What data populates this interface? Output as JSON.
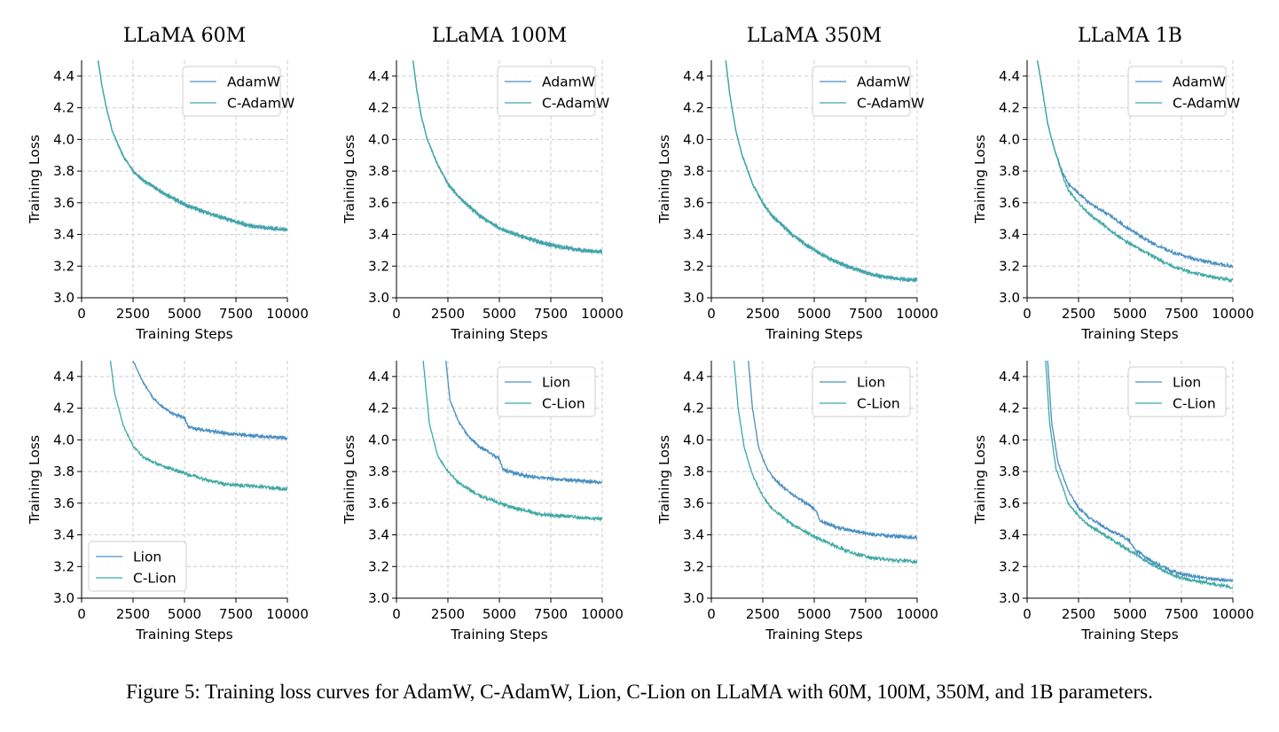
{
  "caption": "Figure 5: Training loss curves for AdamW, C-AdamW, Lion, C-Lion on LLaMA with 60M, 100M, 350M, and 1B parameters.",
  "colors": {
    "base": "#4a8fc0",
    "cautious": "#3fa9a3",
    "grid": "#cccccc"
  },
  "chart_data": [
    {
      "type": "line",
      "title": "LLaMA 60M",
      "xlabel": "Training Steps",
      "ylabel": "Training Loss",
      "xlim": [
        0,
        10000
      ],
      "ylim": [
        3.0,
        4.5
      ],
      "grid": true,
      "legend": "top-right",
      "xticks": [
        "0",
        "2500",
        "5000",
        "7500",
        "10000"
      ],
      "yticks": [
        "3.0",
        "3.2",
        "3.4",
        "3.6",
        "3.8",
        "4.0",
        "4.2",
        "4.4"
      ],
      "series": [
        {
          "name": "AdamW",
          "x": [
            800,
            1000,
            1200,
            1500,
            2000,
            2500,
            3000,
            4000,
            5000,
            6000,
            7000,
            8000,
            9000,
            10000
          ],
          "values": [
            4.5,
            4.33,
            4.2,
            4.05,
            3.9,
            3.8,
            3.74,
            3.66,
            3.59,
            3.54,
            3.5,
            3.46,
            3.44,
            3.43
          ]
        },
        {
          "name": "C-AdamW",
          "x": [
            800,
            1000,
            1200,
            1500,
            2000,
            2500,
            3000,
            4000,
            5000,
            6000,
            7000,
            8000,
            9000,
            10000
          ],
          "values": [
            4.5,
            4.33,
            4.2,
            4.05,
            3.9,
            3.8,
            3.74,
            3.66,
            3.59,
            3.54,
            3.5,
            3.46,
            3.44,
            3.43
          ]
        }
      ]
    },
    {
      "type": "line",
      "title": "LLaMA 100M",
      "xlabel": "Training Steps",
      "ylabel": "Training Loss",
      "xlim": [
        0,
        10000
      ],
      "ylim": [
        3.0,
        4.5
      ],
      "grid": true,
      "legend": "top-right",
      "xticks": [
        "0",
        "2500",
        "5000",
        "7500",
        "10000"
      ],
      "yticks": [
        "3.0",
        "3.2",
        "3.4",
        "3.6",
        "3.8",
        "4.0",
        "4.2",
        "4.4"
      ],
      "series": [
        {
          "name": "AdamW",
          "x": [
            800,
            1000,
            1200,
            1500,
            2000,
            2500,
            3000,
            4000,
            5000,
            6000,
            7000,
            8000,
            9000,
            10000
          ],
          "values": [
            4.5,
            4.3,
            4.15,
            4.0,
            3.84,
            3.72,
            3.64,
            3.52,
            3.44,
            3.39,
            3.35,
            3.32,
            3.3,
            3.29
          ]
        },
        {
          "name": "C-AdamW",
          "x": [
            800,
            1000,
            1200,
            1500,
            2000,
            2500,
            3000,
            4000,
            5000,
            6000,
            7000,
            8000,
            9000,
            10000
          ],
          "values": [
            4.5,
            4.3,
            4.15,
            4.0,
            3.84,
            3.72,
            3.64,
            3.52,
            3.44,
            3.39,
            3.35,
            3.32,
            3.3,
            3.29
          ]
        }
      ]
    },
    {
      "type": "line",
      "title": "LLaMA 350M",
      "xlabel": "Training Steps",
      "ylabel": "Training Loss",
      "xlim": [
        0,
        10000
      ],
      "ylim": [
        3.0,
        4.5
      ],
      "grid": true,
      "legend": "top-right",
      "xticks": [
        "0",
        "2500",
        "5000",
        "7500",
        "10000"
      ],
      "yticks": [
        "3.0",
        "3.2",
        "3.4",
        "3.6",
        "3.8",
        "4.0",
        "4.2",
        "4.4"
      ],
      "series": [
        {
          "name": "AdamW",
          "x": [
            700,
            900,
            1200,
            1500,
            2000,
            2500,
            3000,
            4000,
            5000,
            6000,
            7000,
            8000,
            9000,
            10000
          ],
          "values": [
            4.5,
            4.28,
            4.05,
            3.9,
            3.72,
            3.6,
            3.51,
            3.39,
            3.3,
            3.23,
            3.18,
            3.14,
            3.12,
            3.11
          ]
        },
        {
          "name": "C-AdamW",
          "x": [
            700,
            900,
            1200,
            1500,
            2000,
            2500,
            3000,
            4000,
            5000,
            6000,
            7000,
            8000,
            9000,
            10000
          ],
          "values": [
            4.5,
            4.28,
            4.05,
            3.9,
            3.72,
            3.6,
            3.51,
            3.39,
            3.3,
            3.23,
            3.18,
            3.14,
            3.12,
            3.11
          ]
        }
      ]
    },
    {
      "type": "line",
      "title": "LLaMA 1B",
      "xlabel": "Training Steps",
      "ylabel": "Training Loss",
      "xlim": [
        0,
        10000
      ],
      "ylim": [
        3.0,
        4.5
      ],
      "grid": true,
      "legend": "top-right",
      "xticks": [
        "0",
        "2500",
        "5000",
        "7500",
        "10000"
      ],
      "yticks": [
        "3.0",
        "3.2",
        "3.4",
        "3.6",
        "3.8",
        "4.0",
        "4.2",
        "4.4"
      ],
      "series": [
        {
          "name": "AdamW",
          "x": [
            500,
            700,
            1000,
            1300,
            1700,
            2000,
            2500,
            3000,
            4000,
            5000,
            6000,
            7000,
            8000,
            9000,
            10000
          ],
          "values": [
            4.5,
            4.35,
            4.1,
            3.95,
            3.8,
            3.72,
            3.66,
            3.6,
            3.52,
            3.43,
            3.35,
            3.29,
            3.25,
            3.22,
            3.2
          ]
        },
        {
          "name": "C-AdamW",
          "x": [
            500,
            700,
            1000,
            1300,
            1700,
            2000,
            2500,
            3000,
            4000,
            5000,
            6000,
            7000,
            8000,
            9000,
            10000
          ],
          "values": [
            4.5,
            4.35,
            4.1,
            3.95,
            3.78,
            3.68,
            3.6,
            3.53,
            3.43,
            3.34,
            3.27,
            3.2,
            3.16,
            3.13,
            3.11
          ]
        }
      ]
    },
    {
      "type": "line",
      "title": "",
      "xlabel": "Training Steps",
      "ylabel": "Training Loss",
      "xlim": [
        0,
        10000
      ],
      "ylim": [
        3.0,
        4.5
      ],
      "grid": true,
      "legend": "bottom-left",
      "xticks": [
        "0",
        "2500",
        "5000",
        "7500",
        "10000"
      ],
      "yticks": [
        "3.0",
        "3.2",
        "3.4",
        "3.6",
        "3.8",
        "4.0",
        "4.2",
        "4.4"
      ],
      "series": [
        {
          "name": "Lion",
          "x": [
            2500,
            3000,
            3500,
            4000,
            4500,
            5000,
            5200,
            6000,
            7000,
            8000,
            9000,
            10000
          ],
          "values": [
            4.5,
            4.36,
            4.26,
            4.2,
            4.16,
            4.14,
            4.08,
            4.06,
            4.04,
            4.03,
            4.02,
            4.01
          ]
        },
        {
          "name": "C-Lion",
          "x": [
            1400,
            1600,
            2000,
            2500,
            3000,
            4000,
            5000,
            6000,
            7000,
            8000,
            9000,
            10000
          ],
          "values": [
            4.5,
            4.3,
            4.1,
            3.96,
            3.89,
            3.83,
            3.79,
            3.75,
            3.72,
            3.71,
            3.7,
            3.69
          ]
        }
      ]
    },
    {
      "type": "line",
      "title": "",
      "xlabel": "Training Steps",
      "ylabel": "Training Loss",
      "xlim": [
        0,
        10000
      ],
      "ylim": [
        3.0,
        4.5
      ],
      "grid": true,
      "legend": "top-right",
      "xticks": [
        "0",
        "2500",
        "5000",
        "7500",
        "10000"
      ],
      "yticks": [
        "3.0",
        "3.2",
        "3.4",
        "3.6",
        "3.8",
        "4.0",
        "4.2",
        "4.4"
      ],
      "series": [
        {
          "name": "Lion",
          "x": [
            2400,
            2600,
            3000,
            3500,
            4000,
            4500,
            5000,
            5200,
            6000,
            7000,
            8000,
            9000,
            10000
          ],
          "values": [
            4.5,
            4.25,
            4.12,
            4.02,
            3.96,
            3.92,
            3.88,
            3.81,
            3.78,
            3.76,
            3.75,
            3.74,
            3.73
          ]
        },
        {
          "name": "C-Lion",
          "x": [
            1300,
            1600,
            2000,
            2500,
            3000,
            4000,
            5000,
            6000,
            7000,
            8000,
            9000,
            10000
          ],
          "values": [
            4.5,
            4.1,
            3.9,
            3.8,
            3.73,
            3.65,
            3.6,
            3.56,
            3.53,
            3.52,
            3.51,
            3.5
          ]
        }
      ]
    },
    {
      "type": "line",
      "title": "",
      "xlabel": "Training Steps",
      "ylabel": "Training Loss",
      "xlim": [
        0,
        10000
      ],
      "ylim": [
        3.0,
        4.5
      ],
      "grid": true,
      "legend": "top-right",
      "xticks": [
        "0",
        "2500",
        "5000",
        "7500",
        "10000"
      ],
      "yticks": [
        "3.0",
        "3.2",
        "3.4",
        "3.6",
        "3.8",
        "4.0",
        "4.2",
        "4.4"
      ],
      "series": [
        {
          "name": "Lion",
          "x": [
            1800,
            2000,
            2300,
            2700,
            3000,
            3500,
            4000,
            4500,
            5000,
            5300,
            6000,
            7000,
            8000,
            9000,
            10000
          ],
          "values": [
            4.5,
            4.2,
            3.95,
            3.82,
            3.76,
            3.7,
            3.65,
            3.61,
            3.57,
            3.49,
            3.45,
            3.42,
            3.4,
            3.39,
            3.38
          ]
        },
        {
          "name": "C-Lion",
          "x": [
            1100,
            1300,
            1600,
            2000,
            2500,
            3000,
            4000,
            5000,
            6000,
            7000,
            8000,
            9000,
            10000
          ],
          "values": [
            4.5,
            4.2,
            3.95,
            3.78,
            3.64,
            3.56,
            3.46,
            3.39,
            3.33,
            3.28,
            3.25,
            3.24,
            3.23
          ]
        }
      ]
    },
    {
      "type": "line",
      "title": "",
      "xlabel": "Training Steps",
      "ylabel": "Training Loss",
      "xlim": [
        0,
        10000
      ],
      "ylim": [
        3.0,
        4.5
      ],
      "grid": true,
      "legend": "top-right",
      "xticks": [
        "0",
        "2500",
        "5000",
        "7500",
        "10000"
      ],
      "yticks": [
        "3.0",
        "3.2",
        "3.4",
        "3.6",
        "3.8",
        "4.0",
        "4.2",
        "4.4"
      ],
      "series": [
        {
          "name": "Lion",
          "x": [
            1000,
            1200,
            1500,
            2000,
            2500,
            3000,
            3500,
            4000,
            4500,
            5000,
            5300,
            6000,
            7000,
            8000,
            9000,
            10000
          ],
          "values": [
            4.5,
            4.1,
            3.86,
            3.68,
            3.57,
            3.51,
            3.47,
            3.43,
            3.4,
            3.36,
            3.3,
            3.24,
            3.17,
            3.14,
            3.12,
            3.11
          ]
        },
        {
          "name": "C-Lion",
          "x": [
            900,
            1100,
            1400,
            2000,
            2500,
            3000,
            4000,
            5000,
            6000,
            7000,
            8000,
            9000,
            10000
          ],
          "values": [
            4.5,
            4.1,
            3.82,
            3.6,
            3.52,
            3.46,
            3.38,
            3.3,
            3.22,
            3.15,
            3.11,
            3.09,
            3.07
          ]
        }
      ]
    }
  ]
}
